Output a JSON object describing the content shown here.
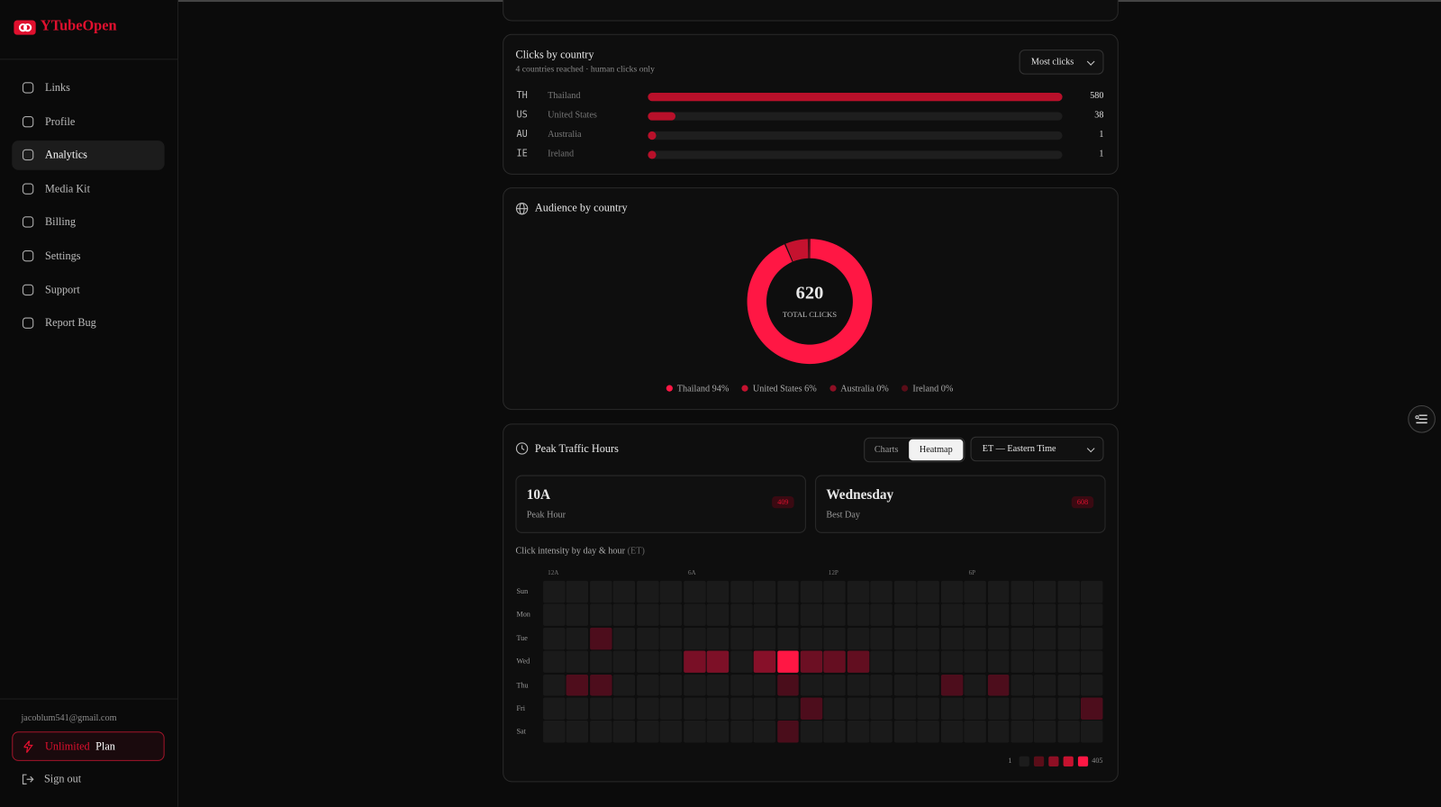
{
  "brand": "YTubeOpen",
  "nav": [
    "Links",
    "Profile",
    "Analytics",
    "Media Kit",
    "Billing",
    "Settings",
    "Support",
    "Report Bug"
  ],
  "account": {
    "email": "jacoblum541@gmail.com",
    "plan_highlight": "Unlimited",
    "plan_label": "Plan",
    "sign_out": "Sign out"
  },
  "clicks_by_country": {
    "title": "Clicks by country",
    "subtitle": "4 countries reached · human clicks only",
    "sort": "Most clicks",
    "rows": [
      {
        "code": "TH",
        "name": "Thailand",
        "clicks": 580
      },
      {
        "code": "US",
        "name": "United States",
        "clicks": 38
      },
      {
        "code": "AU",
        "name": "Australia",
        "clicks": 1
      },
      {
        "code": "IE",
        "name": "Ireland",
        "clicks": 1
      }
    ]
  },
  "audience": {
    "title": "Audience by country",
    "total": 620,
    "total_label": "TOTAL CLICKS",
    "legend": [
      "Thailand 94%",
      "United States 6%",
      "Australia 0%",
      "Ireland 0%"
    ]
  },
  "peak_traffic": {
    "title": "Peak Traffic Hours",
    "tabs": [
      "Charts",
      "Heatmap"
    ],
    "timezone": "ET — Eastern Time",
    "stats": [
      {
        "value": "10A",
        "label": "Peak Hour",
        "count": 409
      },
      {
        "value": "Wednesday",
        "label": "Best Day",
        "count": 608
      }
    ],
    "heatmap": {
      "caption": "Click intensity by day & hour",
      "caption_note": "(ET)",
      "hour_labels": [
        "12A",
        "6A",
        "12P",
        "6P"
      ],
      "days": [
        "Sun",
        "Mon",
        "Tue",
        "Wed",
        "Thu",
        "Fri",
        "Sat"
      ],
      "values": [
        [
          0,
          0,
          0,
          0,
          0,
          0,
          0,
          0,
          0,
          0,
          0,
          0,
          0,
          0,
          0,
          0,
          0,
          0,
          0,
          0,
          0,
          0,
          0,
          0
        ],
        [
          0,
          0,
          0,
          0,
          0,
          0,
          0,
          0,
          0,
          0,
          0,
          0,
          0,
          0,
          0,
          0,
          0,
          0,
          0,
          0,
          0,
          0,
          0,
          0
        ],
        [
          0,
          0,
          3,
          0,
          0,
          0,
          0,
          0,
          0,
          0,
          0,
          0,
          0,
          0,
          0,
          0,
          0,
          0,
          0,
          0,
          0,
          0,
          0,
          0
        ],
        [
          0,
          0,
          0,
          0,
          0,
          0,
          40,
          45,
          0,
          60,
          405,
          25,
          18,
          15,
          0,
          0,
          0,
          0,
          0,
          0,
          0,
          0,
          0,
          0
        ],
        [
          0,
          4,
          3,
          0,
          0,
          0,
          0,
          0,
          0,
          0,
          2,
          0,
          0,
          0,
          0,
          0,
          0,
          3,
          0,
          3,
          0,
          0,
          0,
          0
        ],
        [
          0,
          0,
          0,
          0,
          0,
          0,
          0,
          0,
          0,
          0,
          0,
          3,
          0,
          0,
          0,
          0,
          0,
          0,
          0,
          0,
          0,
          0,
          0,
          3
        ],
        [
          0,
          0,
          0,
          0,
          0,
          0,
          0,
          0,
          0,
          0,
          2,
          0,
          0,
          0,
          0,
          0,
          0,
          0,
          0,
          0,
          0,
          0,
          0,
          0
        ]
      ],
      "legend_min": 1,
      "legend_max": 405
    }
  }
}
